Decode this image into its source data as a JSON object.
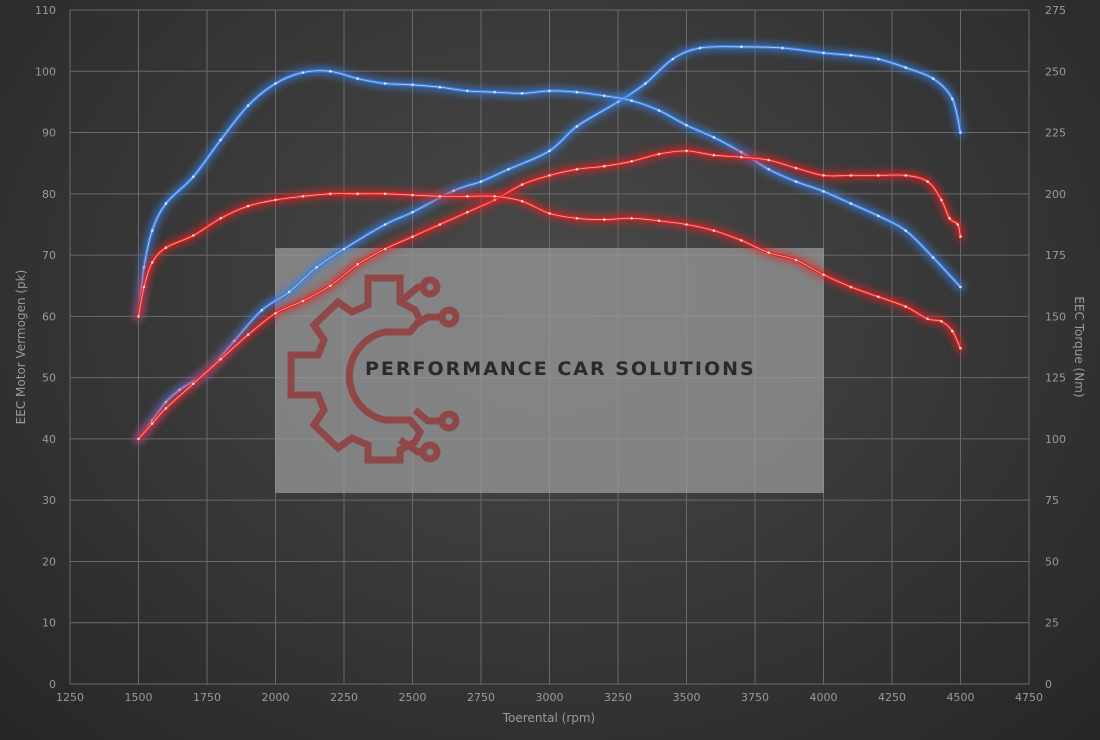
{
  "chart_data": {
    "type": "line",
    "xlabel": "Toerental (rpm)",
    "ylabel_left": "EEC Motor Vermogen (pk)",
    "ylabel_right": "EEC Torque (Nm)",
    "xlim": [
      1250,
      4750
    ],
    "x_ticks": [
      1250,
      1500,
      1750,
      2000,
      2250,
      2500,
      2750,
      3000,
      3250,
      3500,
      3750,
      4000,
      4250,
      4500,
      4750
    ],
    "ylim_left": [
      0,
      110
    ],
    "y_ticks_left": [
      0,
      10,
      20,
      30,
      40,
      50,
      60,
      70,
      80,
      90,
      100,
      110
    ],
    "ylim_right": [
      0,
      275
    ],
    "y_ticks_right": [
      0,
      25,
      50,
      75,
      100,
      125,
      150,
      175,
      200,
      225,
      250,
      275
    ],
    "grid": true,
    "series": [
      {
        "axis": "left",
        "color": "#3a7fe0",
        "points": [
          [
            1500,
            40
          ],
          [
            1550,
            43
          ],
          [
            1600,
            46
          ],
          [
            1650,
            48
          ],
          [
            1750,
            51
          ],
          [
            1850,
            56
          ],
          [
            1950,
            61
          ],
          [
            2050,
            64
          ],
          [
            2150,
            68
          ],
          [
            2250,
            71
          ],
          [
            2400,
            75
          ],
          [
            2500,
            77
          ],
          [
            2650,
            80.5
          ],
          [
            2750,
            82
          ],
          [
            2850,
            84
          ],
          [
            3000,
            87
          ],
          [
            3100,
            91
          ],
          [
            3250,
            95
          ],
          [
            3350,
            98
          ],
          [
            3450,
            102
          ],
          [
            3550,
            103.8
          ],
          [
            3700,
            104
          ],
          [
            3850,
            103.8
          ],
          [
            4000,
            103
          ],
          [
            4100,
            102.6
          ],
          [
            4200,
            102
          ],
          [
            4300,
            100.6
          ],
          [
            4400,
            98.8
          ],
          [
            4470,
            95.5
          ],
          [
            4500,
            90
          ]
        ]
      },
      {
        "axis": "right",
        "color": "#3a7fe0",
        "points": [
          [
            1500,
            150
          ],
          [
            1520,
            170
          ],
          [
            1550,
            185
          ],
          [
            1600,
            196
          ],
          [
            1700,
            207
          ],
          [
            1800,
            222
          ],
          [
            1900,
            236
          ],
          [
            2000,
            245
          ],
          [
            2100,
            249.5
          ],
          [
            2200,
            250
          ],
          [
            2300,
            247
          ],
          [
            2400,
            245
          ],
          [
            2500,
            244.5
          ],
          [
            2600,
            243.5
          ],
          [
            2700,
            242
          ],
          [
            2800,
            241.5
          ],
          [
            2900,
            241
          ],
          [
            3000,
            242
          ],
          [
            3100,
            241.5
          ],
          [
            3200,
            240
          ],
          [
            3300,
            238
          ],
          [
            3400,
            234
          ],
          [
            3500,
            228
          ],
          [
            3600,
            223
          ],
          [
            3700,
            217
          ],
          [
            3800,
            210
          ],
          [
            3900,
            205
          ],
          [
            4000,
            201
          ],
          [
            4100,
            196
          ],
          [
            4200,
            191
          ],
          [
            4300,
            185
          ],
          [
            4400,
            174
          ],
          [
            4500,
            162
          ]
        ]
      },
      {
        "axis": "left",
        "color": "#e02424",
        "points": [
          [
            1500,
            40
          ],
          [
            1550,
            42.5
          ],
          [
            1600,
            45
          ],
          [
            1700,
            49
          ],
          [
            1800,
            53
          ],
          [
            1900,
            57
          ],
          [
            2000,
            60.5
          ],
          [
            2100,
            62.5
          ],
          [
            2200,
            65
          ],
          [
            2300,
            68.5
          ],
          [
            2400,
            71
          ],
          [
            2500,
            73
          ],
          [
            2600,
            75
          ],
          [
            2700,
            77
          ],
          [
            2800,
            79
          ],
          [
            2900,
            81.5
          ],
          [
            3000,
            83
          ],
          [
            3100,
            84
          ],
          [
            3200,
            84.5
          ],
          [
            3300,
            85.3
          ],
          [
            3400,
            86.5
          ],
          [
            3500,
            87
          ],
          [
            3600,
            86.3
          ],
          [
            3700,
            86
          ],
          [
            3800,
            85.5
          ],
          [
            3900,
            84.2
          ],
          [
            4000,
            83
          ],
          [
            4100,
            83
          ],
          [
            4200,
            83
          ],
          [
            4300,
            83
          ],
          [
            4380,
            82
          ],
          [
            4430,
            79
          ],
          [
            4460,
            76
          ],
          [
            4490,
            75
          ],
          [
            4500,
            73
          ]
        ]
      },
      {
        "axis": "right",
        "color": "#e02424",
        "points": [
          [
            1500,
            150
          ],
          [
            1520,
            162
          ],
          [
            1550,
            172
          ],
          [
            1600,
            178
          ],
          [
            1700,
            183
          ],
          [
            1800,
            190
          ],
          [
            1900,
            195
          ],
          [
            2000,
            197.5
          ],
          [
            2100,
            199
          ],
          [
            2200,
            200
          ],
          [
            2300,
            200
          ],
          [
            2400,
            200
          ],
          [
            2500,
            199.5
          ],
          [
            2600,
            199
          ],
          [
            2700,
            199
          ],
          [
            2800,
            199
          ],
          [
            2900,
            197
          ],
          [
            3000,
            192
          ],
          [
            3100,
            190
          ],
          [
            3200,
            189.5
          ],
          [
            3300,
            190
          ],
          [
            3400,
            189
          ],
          [
            3500,
            187.5
          ],
          [
            3600,
            185
          ],
          [
            3700,
            181
          ],
          [
            3800,
            176
          ],
          [
            3900,
            173
          ],
          [
            4000,
            167
          ],
          [
            4100,
            162
          ],
          [
            4200,
            158
          ],
          [
            4300,
            154
          ],
          [
            4380,
            149
          ],
          [
            4430,
            148
          ],
          [
            4470,
            144
          ],
          [
            4500,
            137
          ]
        ]
      }
    ]
  },
  "watermark": {
    "text": "PERFORMANCE CAR SOLUTIONS",
    "logo_icon": "gear-circuit-icon",
    "logo_color": "#8f4747",
    "panel_color": "#9c9c9c"
  }
}
